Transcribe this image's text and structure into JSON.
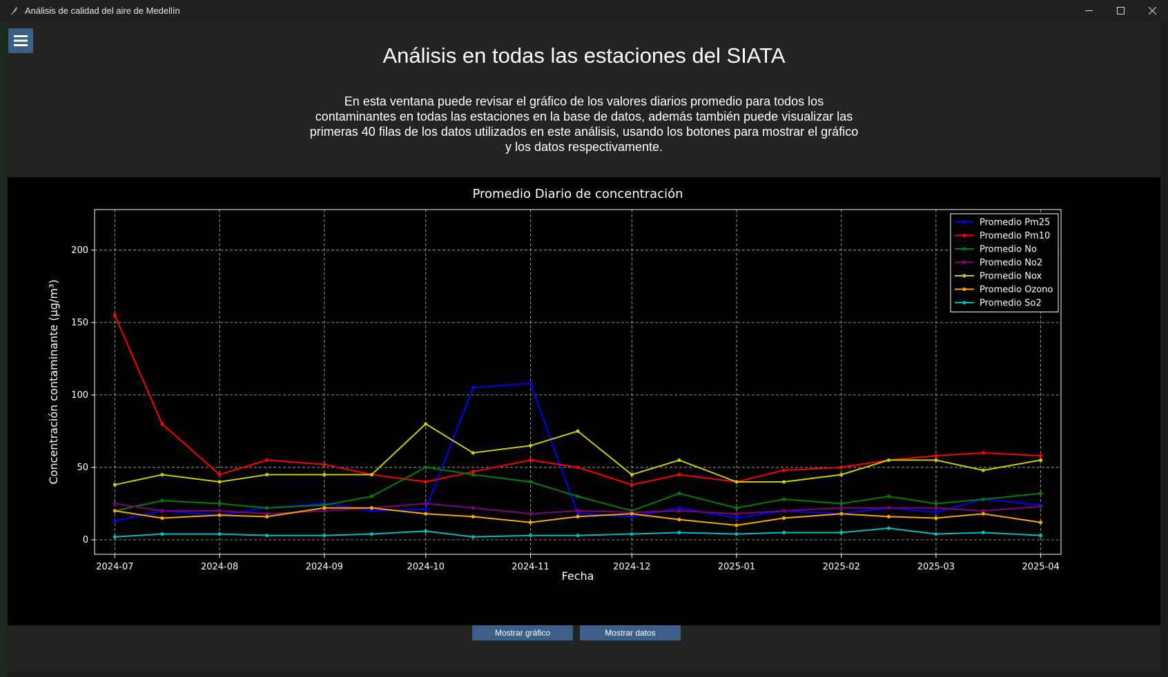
{
  "window": {
    "title": "Análisis de calidad del aire de Medellín",
    "icon": "feather-icon",
    "controls": [
      "minimize-icon",
      "maximize-icon",
      "close-icon"
    ]
  },
  "header": {
    "menu_icon": "hamburger-icon",
    "title": "Análisis en todas las estaciones del SIATA",
    "description": "En esta ventana puede revisar el gráfico de los valores diarios promedio para todos los contaminantes en todas las estaciones en la base de datos, además también puede visualizar las primeras 40 filas de los datos utilizados en este análisis, usando los botones para mostrar el gráfico y los datos respectivamente."
  },
  "buttons": {
    "show_chart": "Mostrar gráfico",
    "show_data": "Mostrar datos"
  },
  "chart_data": {
    "type": "line",
    "title": "Promedio Diario de concentración",
    "xlabel": "Fecha",
    "ylabel": "Concentración contaminante (µg/m³)",
    "x_range": [
      "2024-06-25",
      "2025-04-07"
    ],
    "ylim": [
      -10,
      228
    ],
    "x_ticks": [
      "2024-07",
      "2024-08",
      "2024-09",
      "2024-10",
      "2024-11",
      "2024-12",
      "2025-01",
      "2025-02",
      "2025-03",
      "2025-04"
    ],
    "y_ticks": [
      0,
      50,
      100,
      150,
      200
    ],
    "grid": true,
    "legend_position": "top-right",
    "x": [
      "2024-07-01",
      "2024-07-15",
      "2024-08-01",
      "2024-08-15",
      "2024-09-01",
      "2024-09-15",
      "2024-10-01",
      "2024-10-15",
      "2024-11-01",
      "2024-11-15",
      "2024-12-01",
      "2024-12-15",
      "2025-01-01",
      "2025-01-15",
      "2025-02-01",
      "2025-02-15",
      "2025-03-01",
      "2025-03-15",
      "2025-04-01"
    ],
    "series": [
      {
        "name": "Promedio Pm25",
        "color": "#0000ff",
        "values": [
          13,
          20,
          17,
          22,
          25,
          20,
          21,
          105,
          108,
          18,
          16,
          22,
          15,
          20,
          18,
          22,
          19,
          28,
          24
        ]
      },
      {
        "name": "Promedio Pm10",
        "color": "#ff0000",
        "values": [
          155,
          80,
          45,
          55,
          52,
          45,
          40,
          47,
          55,
          50,
          38,
          45,
          40,
          48,
          50,
          55,
          58,
          60,
          58
        ]
      },
      {
        "name": "Promedio No",
        "color": "#008000",
        "values": [
          20,
          27,
          25,
          22,
          24,
          30,
          50,
          45,
          40,
          30,
          20,
          32,
          22,
          28,
          25,
          30,
          25,
          28,
          32
        ]
      },
      {
        "name": "Promedio No2",
        "color": "#800080",
        "values": [
          25,
          20,
          20,
          18,
          20,
          22,
          25,
          22,
          18,
          20,
          19,
          20,
          18,
          20,
          22,
          22,
          22,
          20,
          23
        ]
      },
      {
        "name": "Promedio Nox",
        "color": "#cccc00",
        "values": [
          38,
          45,
          40,
          45,
          45,
          45,
          80,
          60,
          65,
          75,
          45,
          55,
          40,
          40,
          45,
          55,
          55,
          48,
          55
        ]
      },
      {
        "name": "Promedio Ozono",
        "color": "#ffa500",
        "values": [
          20,
          15,
          17,
          16,
          22,
          22,
          18,
          16,
          12,
          16,
          18,
          14,
          10,
          15,
          18,
          16,
          15,
          18,
          12
        ]
      },
      {
        "name": "Promedio So2",
        "color": "#00bfbf",
        "values": [
          2,
          4,
          4,
          3,
          3,
          4,
          6,
          2,
          3,
          3,
          4,
          5,
          4,
          5,
          5,
          8,
          4,
          5,
          3
        ]
      }
    ]
  }
}
